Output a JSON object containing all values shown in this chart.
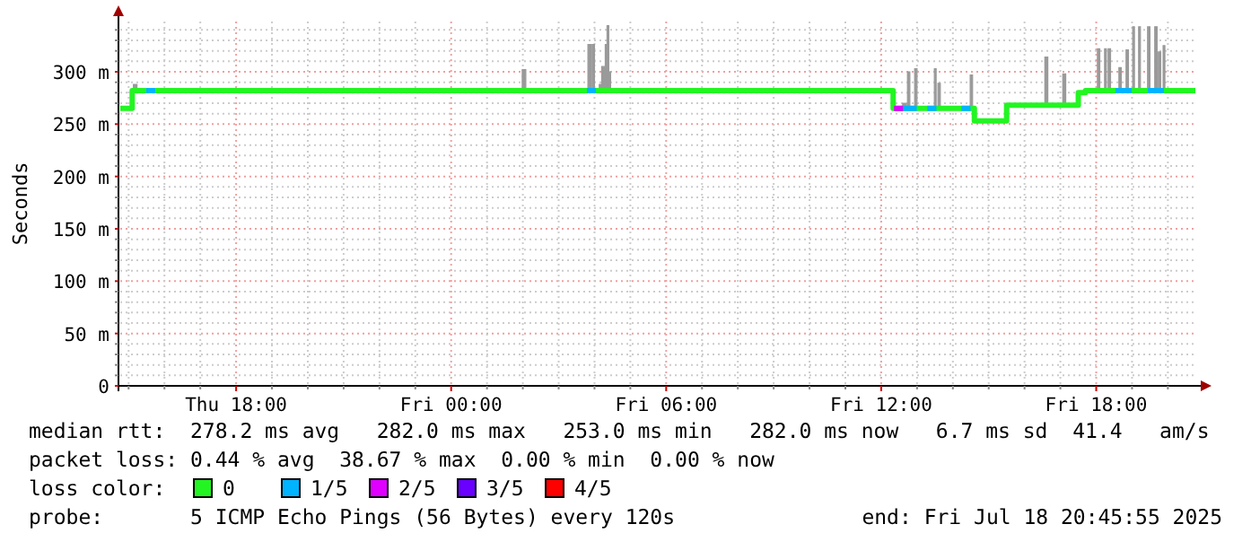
{
  "chart_data": {
    "type": "step",
    "ylabel": "Seconds",
    "legend_title": "loss color:",
    "legend": "bottom",
    "grid": true,
    "xlim": [
      "2025-07-17T14:46",
      "2025-07-18T20:46"
    ],
    "xticks": [
      {
        "value": "2025-07-17T15:00",
        "label": null
      },
      {
        "value": "2025-07-17T16:00",
        "label": null
      },
      {
        "value": "2025-07-17T17:00",
        "label": null
      },
      {
        "value": "2025-07-17T18:00",
        "label": "Thu 18:00"
      },
      {
        "value": "2025-07-17T19:00",
        "label": null
      },
      {
        "value": "2025-07-17T20:00",
        "label": null
      },
      {
        "value": "2025-07-17T21:00",
        "label": null
      },
      {
        "value": "2025-07-17T22:00",
        "label": null
      },
      {
        "value": "2025-07-17T23:00",
        "label": null
      },
      {
        "value": "2025-07-18T00:00",
        "label": "Fri 00:00"
      },
      {
        "value": "2025-07-18T01:00",
        "label": null
      },
      {
        "value": "2025-07-18T02:00",
        "label": null
      },
      {
        "value": "2025-07-18T03:00",
        "label": null
      },
      {
        "value": "2025-07-18T04:00",
        "label": null
      },
      {
        "value": "2025-07-18T05:00",
        "label": null
      },
      {
        "value": "2025-07-18T06:00",
        "label": "Fri 06:00"
      },
      {
        "value": "2025-07-18T07:00",
        "label": null
      },
      {
        "value": "2025-07-18T08:00",
        "label": null
      },
      {
        "value": "2025-07-18T09:00",
        "label": null
      },
      {
        "value": "2025-07-18T10:00",
        "label": null
      },
      {
        "value": "2025-07-18T11:00",
        "label": null
      },
      {
        "value": "2025-07-18T12:00",
        "label": "Fri 12:00"
      },
      {
        "value": "2025-07-18T13:00",
        "label": null
      },
      {
        "value": "2025-07-18T14:00",
        "label": null
      },
      {
        "value": "2025-07-18T15:00",
        "label": null
      },
      {
        "value": "2025-07-18T16:00",
        "label": null
      },
      {
        "value": "2025-07-18T17:00",
        "label": null
      },
      {
        "value": "2025-07-18T18:00",
        "label": "Fri 18:00"
      },
      {
        "value": "2025-07-18T19:00",
        "label": null
      },
      {
        "value": "2025-07-18T20:00",
        "label": null
      }
    ],
    "ylim": [
      0,
      348
    ],
    "yticks": [
      0,
      {
        "value": 10,
        "label": null
      },
      {
        "value": 20,
        "label": null
      },
      {
        "value": 30,
        "label": null
      },
      {
        "value": 40,
        "label": null
      },
      {
        "value": 50,
        "label": "50 m"
      },
      {
        "value": 60,
        "label": null
      },
      {
        "value": 70,
        "label": null
      },
      {
        "value": 80,
        "label": null
      },
      {
        "value": 90,
        "label": null
      },
      {
        "value": 100,
        "label": "100 m"
      },
      {
        "value": 110,
        "label": null
      },
      {
        "value": 120,
        "label": null
      },
      {
        "value": 130,
        "label": null
      },
      {
        "value": 140,
        "label": null
      },
      {
        "value": 150,
        "label": "150 m"
      },
      {
        "value": 160,
        "label": null
      },
      {
        "value": 170,
        "label": null
      },
      {
        "value": 180,
        "label": null
      },
      {
        "value": 190,
        "label": null
      },
      {
        "value": 200,
        "label": "200 m"
      },
      {
        "value": 210,
        "label": null
      },
      {
        "value": 220,
        "label": null
      },
      {
        "value": 230,
        "label": null
      },
      {
        "value": 240,
        "label": null
      },
      {
        "value": 250,
        "label": "250 m"
      },
      {
        "value": 260,
        "label": null
      },
      {
        "value": 270,
        "label": null
      },
      {
        "value": 280,
        "label": null
      },
      {
        "value": 290,
        "label": null
      },
      {
        "value": 300,
        "label": "300 m"
      },
      {
        "value": 310,
        "label": null
      },
      {
        "value": 320,
        "label": null
      },
      {
        "value": 330,
        "label": null
      },
      {
        "value": 340,
        "label": null
      }
    ],
    "series": [
      {
        "name": "0",
        "type": "step",
        "color": "#22f522",
        "x": [
          "2025-07-17T14:46",
          "2025-07-17T15:06",
          "2025-07-17T15:08",
          "2025-07-17T15:14",
          "2025-07-18T01:59",
          "2025-07-18T02:05",
          "2025-07-18T03:49",
          "2025-07-18T03:54",
          "2025-07-18T03:56",
          "2025-07-18T04:00",
          "2025-07-18T04:08",
          "2025-07-18T04:12",
          "2025-07-18T04:18",
          "2025-07-18T04:21",
          "2025-07-18T04:24",
          "2025-07-18T04:27",
          "2025-07-18T12:20",
          "2025-07-18T12:36",
          "2025-07-18T12:42",
          "2025-07-18T12:44",
          "2025-07-18T12:48",
          "2025-07-18T12:56",
          "2025-07-18T13:00",
          "2025-07-18T13:29",
          "2025-07-18T13:32",
          "2025-07-18T13:35",
          "2025-07-18T13:39",
          "2025-07-18T14:29",
          "2025-07-18T14:33",
          "2025-07-18T14:36",
          "2025-07-18T15:30",
          "2025-07-18T16:34",
          "2025-07-18T16:39",
          "2025-07-18T17:04",
          "2025-07-18T17:09",
          "2025-07-18T17:30",
          "2025-07-18T17:42",
          "2025-07-18T18:02",
          "2025-07-18T18:06",
          "2025-07-18T18:14",
          "2025-07-18T18:17",
          "2025-07-18T18:20",
          "2025-07-18T18:24",
          "2025-07-18T18:38",
          "2025-07-18T18:42",
          "2025-07-18T18:50",
          "2025-07-18T18:54",
          "2025-07-18T19:01",
          "2025-07-18T19:04",
          "2025-07-18T19:11",
          "2025-07-18T19:14",
          "2025-07-18T19:26",
          "2025-07-18T19:30",
          "2025-07-18T19:38",
          "2025-07-18T19:42",
          "2025-07-18T19:44",
          "2025-07-18T19:48",
          "2025-07-18T19:52",
          "2025-07-18T19:55",
          "2025-07-18T20:46"
        ],
        "values": [
          265,
          282,
          282,
          282,
          282,
          282,
          282,
          282,
          282,
          282,
          282,
          282,
          282,
          282,
          282,
          282,
          265,
          265,
          265,
          265,
          265,
          265,
          265,
          265,
          265,
          265,
          265,
          265,
          265,
          253,
          268,
          268,
          268,
          268,
          268,
          280,
          282,
          282,
          282,
          282,
          282,
          282,
          282,
          282,
          282,
          282,
          282,
          282,
          282,
          282,
          282,
          282,
          282,
          282,
          282,
          282,
          282,
          282,
          282,
          282
        ],
        "lower": [
          265,
          282,
          282,
          282,
          282,
          282,
          282,
          282,
          282,
          282,
          282,
          282,
          282,
          282,
          282,
          282,
          265,
          265,
          265,
          265,
          265,
          265,
          265,
          265,
          265,
          265,
          265,
          265,
          265,
          253,
          268,
          268,
          268,
          268,
          268,
          280,
          282,
          282,
          282,
          282,
          282,
          282,
          282,
          282,
          282,
          282,
          282,
          282,
          282,
          282,
          282,
          282,
          282,
          282,
          282,
          282,
          282,
          282,
          282,
          282
        ],
        "upper": [
          265,
          282,
          288,
          282,
          302,
          282,
          326,
          282,
          326,
          282,
          288,
          305,
          326,
          344,
          300,
          282,
          265,
          270,
          265,
          300,
          265,
          303,
          265,
          303,
          265,
          289,
          265,
          297,
          265,
          253,
          268,
          314,
          268,
          298,
          268,
          280,
          282,
          322,
          282,
          322,
          282,
          322,
          282,
          304,
          282,
          321,
          282,
          343,
          282,
          343,
          282,
          343,
          282,
          343,
          282,
          319,
          282,
          325,
          282,
          282
        ]
      },
      {
        "name": "1/5",
        "type": "scatter",
        "color": "#00b4ff",
        "x": [
          "2025-07-17T15:37",
          "2025-07-18T03:55",
          "2025-07-18T12:40",
          "2025-07-18T12:52",
          "2025-07-18T13:25",
          "2025-07-18T14:22",
          "2025-07-18T18:40",
          "2025-07-18T18:52",
          "2025-07-18T19:34",
          "2025-07-18T19:46"
        ],
        "values": [
          282,
          282,
          265,
          265,
          265,
          265,
          282,
          282,
          282,
          282
        ]
      },
      {
        "name": "2/5",
        "type": "scatter",
        "color": "#e000ff",
        "x": [
          "2025-07-18T12:29"
        ],
        "values": [
          265
        ]
      },
      {
        "name": "3/5",
        "type": "line",
        "color": "#6a00ff"
      },
      {
        "name": "4/5",
        "type": "line",
        "color": "#ff0000"
      }
    ],
    "annotations": [
      "median rtt:  278.2 ms avg   282.0 ms max   253.0 ms min   282.0 ms now   6.7 ms sd  41.4   am/s",
      "packet loss: 0.44 % avg  38.67 % max  0.00 % min  0.00 % now",
      "probe:       5 ICMP Echo Pings (56 Bytes) every 120s",
      "end: Fri Jul 18 20:45:55 2025"
    ]
  }
}
